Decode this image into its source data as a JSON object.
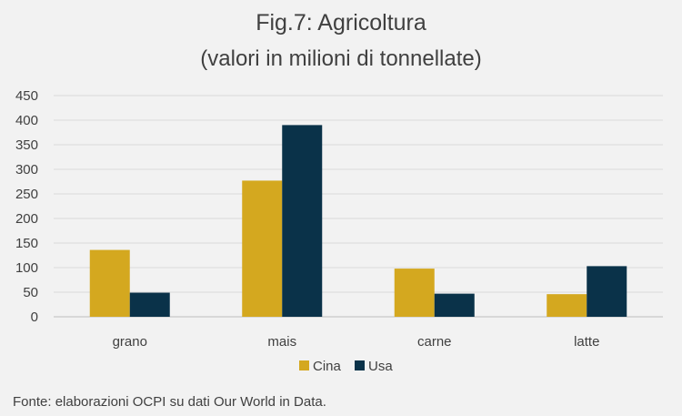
{
  "chart_data": {
    "type": "bar",
    "title": "Fig.7: Agricoltura",
    "subtitle": "(valori in milioni di tonnellate)",
    "categories": [
      "grano",
      "mais",
      "carne",
      "latte"
    ],
    "series": [
      {
        "name": "Cina",
        "color": "#d4a81f",
        "values": [
          136,
          277,
          98,
          46
        ]
      },
      {
        "name": "Usa",
        "color": "#0a3249",
        "values": [
          49,
          390,
          47,
          103
        ]
      }
    ],
    "ylim": [
      0,
      450
    ],
    "yticks": [
      0,
      50,
      100,
      150,
      200,
      250,
      300,
      350,
      400,
      450
    ],
    "grid": true,
    "legend": "bottom"
  },
  "source_note": "Fonte: elaborazioni OCPI su dati Our World in Data."
}
